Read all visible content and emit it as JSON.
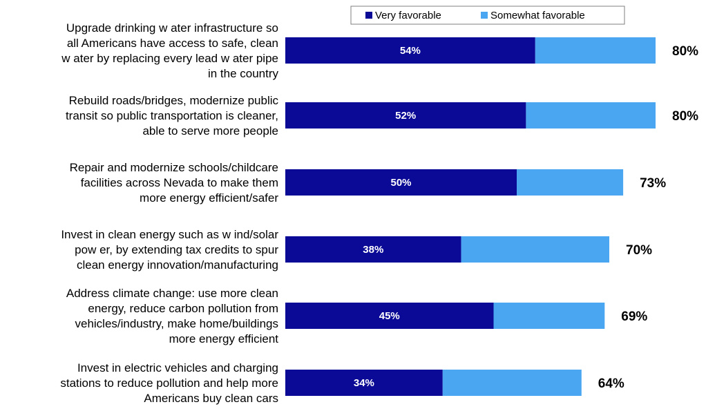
{
  "chart_data": {
    "type": "bar",
    "orientation": "horizontal",
    "stacked": true,
    "categories": [
      "Upgrade drinking w ater infrastructure so all Americans have access to safe, clean w ater by replacing every lead w ater pipe in the country",
      "Rebuild roads/bridges, modernize public transit so public transportation is cleaner, able to serve more people",
      "Repair and modernize schools/childcare facilities across Nevada to make them more energy efficient/safer",
      "Invest in clean energy such as w ind/solar pow er, by extending tax credits to spur clean energy innovation/manufacturing",
      "Address climate change: use more clean energy, reduce carbon pollution from vehicles/industry, make home/buildings more energy efficient",
      "Invest in electric vehicles and charging stations to reduce pollution and help more Americans buy clean cars"
    ],
    "category_lines": [
      [
        "Upgrade drinking w ater infrastructure so",
        "all Americans have access to safe, clean",
        "w ater by replacing every lead w ater pipe",
        "in the country"
      ],
      [
        "Rebuild roads/bridges, modernize public",
        "transit so public transportation is cleaner,",
        "able to serve more people"
      ],
      [
        "Repair and modernize schools/childcare",
        "facilities across Nevada to make them",
        "more energy efficient/safer"
      ],
      [
        "Invest in clean energy such as w ind/solar",
        "pow er, by extending tax credits to spur",
        "clean energy innovation/manufacturing"
      ],
      [
        "Address climate change: use more clean",
        "energy, reduce carbon pollution from",
        "vehicles/industry, make home/buildings",
        "more energy efficient"
      ],
      [
        "Invest in electric vehicles and charging",
        "stations to reduce pollution and help more",
        "Americans buy clean cars"
      ]
    ],
    "series": [
      {
        "name": "Very favorable",
        "values": [
          54,
          52,
          50,
          38,
          45,
          34
        ],
        "color": "#0a0a96"
      },
      {
        "name": "Somewhat favorable",
        "values": [
          26,
          28,
          23,
          32,
          24,
          30
        ],
        "color": "#4aa6f0"
      }
    ],
    "segment_labels": [
      "54%",
      "52%",
      "50%",
      "38%",
      "45%",
      "34%"
    ],
    "totals": [
      "80%",
      "80%",
      "73%",
      "70%",
      "69%",
      "64%"
    ],
    "xlim": [
      0,
      100
    ],
    "grid": false,
    "legend_position": "top"
  }
}
